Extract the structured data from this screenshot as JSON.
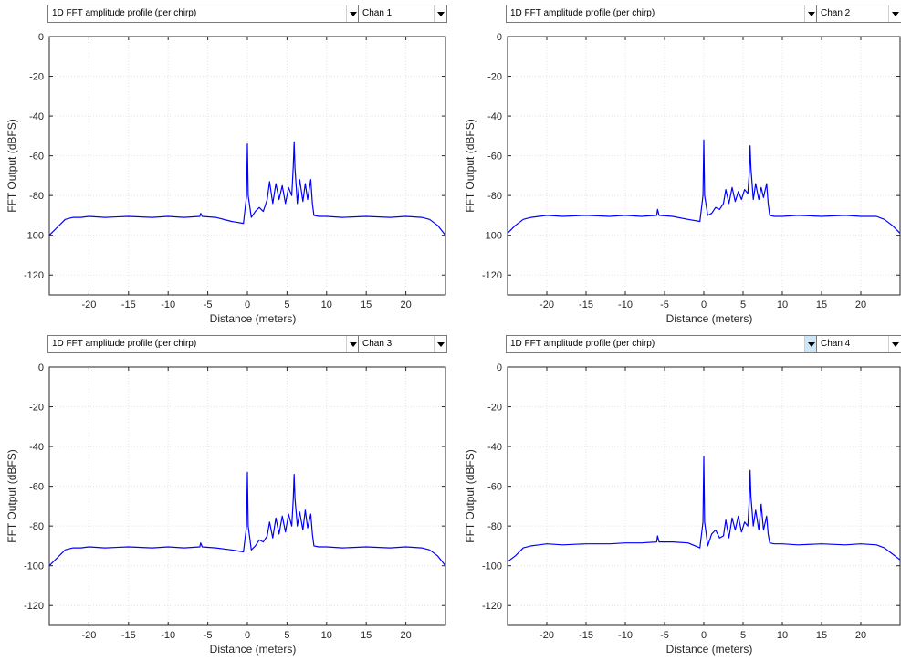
{
  "common": {
    "plot_type": "1D FFT amplitude profile (per chirp)",
    "xlabel": "Distance (meters)",
    "ylabel": "FFT Output (dBFS)",
    "xticks": [
      "-20",
      "-15",
      "-10",
      "-5",
      "0",
      "5",
      "10",
      "15",
      "20"
    ],
    "yticks": [
      "0",
      "-20",
      "-40",
      "-60",
      "-80",
      "-100",
      "-120"
    ]
  },
  "panels": [
    {
      "channel": "Chan 1"
    },
    {
      "channel": "Chan 2"
    },
    {
      "channel": "Chan 3"
    },
    {
      "channel": "Chan 4"
    }
  ],
  "chart_data": [
    {
      "type": "line",
      "title": "",
      "xlabel": "Distance (meters)",
      "ylabel": "FFT Output (dBFS)",
      "xlim": [
        -25,
        25
      ],
      "ylim": [
        -130,
        0
      ],
      "grid": true,
      "line_color": "#0000ff",
      "series": [
        {
          "x": [
            -25,
            -24,
            -23,
            -22,
            -21,
            -20,
            -18,
            -15,
            -12,
            -10,
            -8,
            -6,
            -5.9,
            -5.7,
            -4,
            -2,
            -0.5,
            -0.1,
            0,
            0.1,
            0.5,
            1,
            1.5,
            2,
            2.5,
            2.8,
            3.2,
            3.6,
            4,
            4.4,
            4.8,
            5.2,
            5.6,
            5.8,
            5.9,
            6,
            6.3,
            6.6,
            7,
            7.3,
            7.6,
            8,
            8.2,
            8.4,
            9,
            10,
            12,
            15,
            18,
            20,
            22,
            23,
            24,
            25
          ],
          "y": [
            -100,
            -96,
            -92,
            -91,
            -91,
            -90.5,
            -91,
            -90.5,
            -91,
            -90.5,
            -91,
            -90.5,
            -89,
            -90.5,
            -91,
            -93,
            -94,
            -80,
            -54,
            -80,
            -91,
            -88,
            -86,
            -88,
            -82,
            -73,
            -84,
            -74,
            -82,
            -75,
            -84,
            -76,
            -80,
            -65,
            -53,
            -66,
            -84,
            -72,
            -83,
            -74,
            -82,
            -72,
            -84,
            -90,
            -90.5,
            -90.5,
            -91,
            -90.5,
            -91,
            -90.5,
            -91,
            -92,
            -95,
            -100
          ]
        }
      ]
    },
    {
      "type": "line",
      "title": "",
      "xlabel": "Distance (meters)",
      "ylabel": "FFT Output (dBFS)",
      "xlim": [
        -25,
        25
      ],
      "ylim": [
        -130,
        0
      ],
      "grid": true,
      "line_color": "#0000ff",
      "series": [
        {
          "x": [
            -25,
            -24,
            -23,
            -22,
            -21,
            -20,
            -18,
            -15,
            -12,
            -10,
            -8,
            -6,
            -5.9,
            -5.7,
            -4,
            -2,
            -0.5,
            -0.1,
            0,
            0.1,
            0.5,
            1,
            1.5,
            2,
            2.5,
            2.8,
            3.2,
            3.6,
            4,
            4.4,
            4.8,
            5.2,
            5.6,
            5.8,
            5.9,
            6,
            6.3,
            6.6,
            7,
            7.3,
            7.6,
            8,
            8.2,
            8.4,
            9,
            10,
            12,
            15,
            18,
            20,
            22,
            23,
            24,
            25
          ],
          "y": [
            -99,
            -95,
            -92,
            -91,
            -90.5,
            -90,
            -90.5,
            -90,
            -90.5,
            -90,
            -90.5,
            -90,
            -87,
            -90,
            -90.5,
            -92,
            -93,
            -80,
            -52,
            -80,
            -90,
            -89,
            -86,
            -87,
            -84,
            -77,
            -84,
            -76,
            -83,
            -78,
            -82,
            -77,
            -79,
            -68,
            -55,
            -66,
            -82,
            -74,
            -82,
            -76,
            -81,
            -74,
            -84,
            -90,
            -90.5,
            -90.5,
            -90,
            -90.5,
            -90,
            -90.5,
            -90.5,
            -92,
            -95,
            -99
          ]
        }
      ]
    },
    {
      "type": "line",
      "title": "",
      "xlabel": "Distance (meters)",
      "ylabel": "FFT Output (dBFS)",
      "xlim": [
        -25,
        25
      ],
      "ylim": [
        -130,
        0
      ],
      "grid": true,
      "line_color": "#0000ff",
      "series": [
        {
          "x": [
            -25,
            -24,
            -23,
            -22,
            -21,
            -20,
            -18,
            -15,
            -12,
            -10,
            -8,
            -6,
            -5.9,
            -5.7,
            -4,
            -2,
            -0.5,
            -0.1,
            0,
            0.1,
            0.5,
            1,
            1.5,
            2,
            2.5,
            2.8,
            3.2,
            3.6,
            4,
            4.4,
            4.8,
            5.2,
            5.6,
            5.8,
            5.9,
            6,
            6.3,
            6.6,
            7,
            7.3,
            7.6,
            8,
            8.2,
            8.4,
            9,
            10,
            12,
            15,
            18,
            20,
            22,
            23,
            24,
            25
          ],
          "y": [
            -100,
            -96,
            -92,
            -91,
            -91,
            -90.5,
            -91,
            -90.5,
            -91,
            -90.5,
            -91,
            -90.5,
            -88.5,
            -90.5,
            -91,
            -92,
            -93,
            -80,
            -53,
            -80,
            -92,
            -90,
            -87,
            -88,
            -85,
            -78,
            -86,
            -76,
            -84,
            -75,
            -83,
            -74,
            -80,
            -66,
            -54,
            -66,
            -80,
            -73,
            -82,
            -72,
            -81,
            -74,
            -84,
            -90,
            -90.5,
            -90.5,
            -91,
            -90.5,
            -91,
            -90.5,
            -91,
            -92,
            -95,
            -100
          ]
        }
      ]
    },
    {
      "type": "line",
      "title": "",
      "xlabel": "Distance (meters)",
      "ylabel": "FFT Output (dBFS)",
      "xlim": [
        -25,
        25
      ],
      "ylim": [
        -130,
        0
      ],
      "grid": true,
      "line_color": "#0000ff",
      "series": [
        {
          "x": [
            -25,
            -24,
            -23,
            -22,
            -21,
            -20,
            -18,
            -15,
            -12,
            -10,
            -8,
            -6,
            -5.9,
            -5.7,
            -4,
            -2,
            -0.5,
            -0.1,
            0,
            0.1,
            0.5,
            1,
            1.5,
            2,
            2.5,
            2.8,
            3.2,
            3.6,
            4,
            4.4,
            4.8,
            5.2,
            5.6,
            5.8,
            5.9,
            6,
            6.3,
            6.6,
            7,
            7.3,
            7.6,
            8,
            8.2,
            8.4,
            9,
            10,
            12,
            15,
            18,
            20,
            22,
            23,
            24,
            25
          ],
          "y": [
            -98,
            -95,
            -91,
            -90,
            -89.5,
            -89,
            -89.5,
            -89,
            -89,
            -88.5,
            -88.5,
            -88,
            -85,
            -88,
            -88,
            -88.5,
            -91,
            -78,
            -45,
            -78,
            -90,
            -84,
            -82,
            -86,
            -85,
            -77,
            -86,
            -76,
            -82,
            -75,
            -83,
            -78,
            -80,
            -66,
            -52,
            -65,
            -80,
            -72,
            -82,
            -69,
            -82,
            -75,
            -84,
            -88.5,
            -89,
            -89,
            -89.5,
            -89,
            -89.5,
            -89,
            -89.5,
            -91,
            -94,
            -97
          ]
        }
      ]
    }
  ]
}
